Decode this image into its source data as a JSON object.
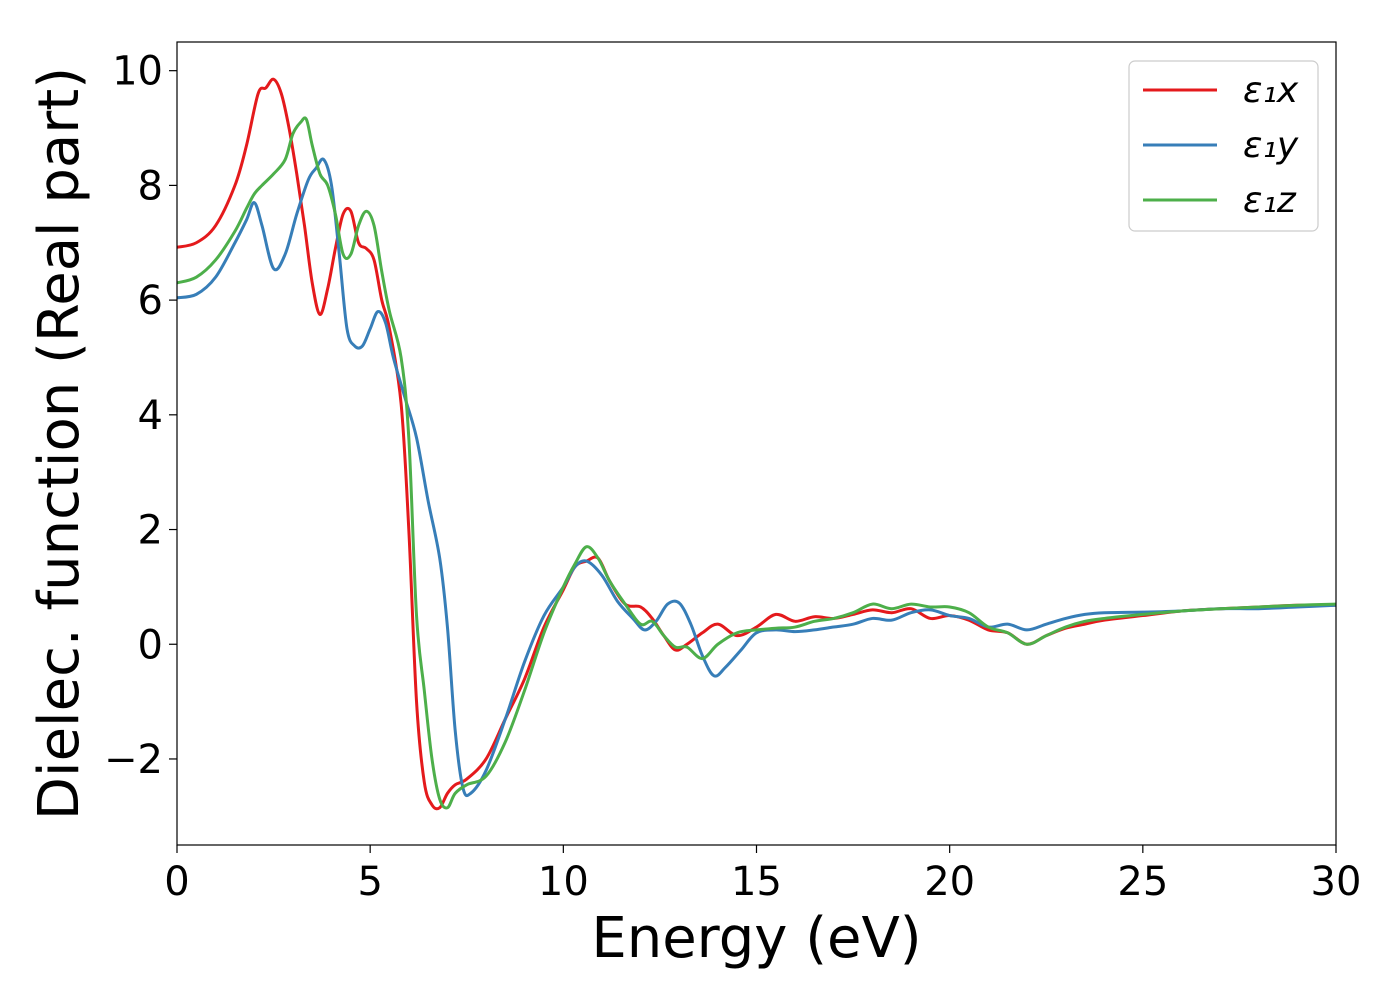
{
  "chart_data": {
    "type": "line",
    "title": "",
    "xlabel": "Energy (eV)",
    "ylabel": "Dielec. function (Real part)",
    "xlim": [
      0,
      30
    ],
    "ylim": [
      -3.5,
      10.5
    ],
    "xticks": [
      0,
      5,
      10,
      15,
      20,
      25,
      30
    ],
    "xtick_labels": [
      "0",
      "5",
      "10",
      "15",
      "20",
      "25",
      "30"
    ],
    "yticks": [
      -2,
      0,
      2,
      4,
      6,
      8,
      10
    ],
    "ytick_labels": [
      "−2",
      "0",
      "2",
      "4",
      "6",
      "8",
      "10"
    ],
    "grid": false,
    "legend_position": "top-right",
    "series": [
      {
        "name": "ε₁x",
        "color": "#e41a1c",
        "x": [
          0,
          0.5,
          1,
          1.5,
          1.8,
          2.1,
          2.3,
          2.5,
          2.7,
          2.9,
          3.1,
          3.3,
          3.5,
          3.7,
          3.9,
          4.1,
          4.3,
          4.5,
          4.7,
          4.9,
          5.1,
          5.3,
          5.5,
          5.8,
          6.0,
          6.2,
          6.4,
          6.6,
          6.8,
          7.0,
          7.2,
          7.5,
          8.0,
          8.5,
          9.0,
          9.5,
          10.0,
          10.3,
          10.6,
          10.9,
          11.2,
          11.6,
          12.0,
          12.3,
          12.6,
          12.9,
          13.2,
          13.6,
          14.0,
          14.5,
          15.0,
          15.5,
          16.0,
          16.5,
          17.0,
          17.5,
          18.0,
          18.5,
          19.0,
          19.5,
          20.0,
          20.5,
          21.0,
          21.5,
          22.0,
          22.5,
          23.0,
          23.5,
          24.0,
          25.0,
          26.0,
          27.0,
          28.0,
          29.0,
          30.0
        ],
        "y": [
          6.92,
          7.0,
          7.3,
          8.0,
          8.7,
          9.6,
          9.7,
          9.85,
          9.6,
          9.0,
          8.2,
          7.3,
          6.3,
          5.75,
          6.2,
          6.9,
          7.5,
          7.55,
          7.0,
          6.9,
          6.7,
          6.0,
          5.5,
          4.2,
          2.0,
          -1.0,
          -2.4,
          -2.8,
          -2.85,
          -2.6,
          -2.45,
          -2.35,
          -2.0,
          -1.3,
          -0.6,
          0.3,
          0.95,
          1.35,
          1.45,
          1.5,
          1.1,
          0.7,
          0.65,
          0.45,
          0.15,
          -0.1,
          0.0,
          0.2,
          0.35,
          0.15,
          0.3,
          0.52,
          0.4,
          0.48,
          0.45,
          0.52,
          0.6,
          0.55,
          0.62,
          0.45,
          0.5,
          0.42,
          0.25,
          0.2,
          0.0,
          0.15,
          0.28,
          0.35,
          0.42,
          0.5,
          0.58,
          0.62,
          0.65,
          0.68,
          0.68
        ]
      },
      {
        "name": "ε₁y",
        "color": "#377eb8",
        "x": [
          0,
          0.5,
          1,
          1.5,
          1.8,
          2.0,
          2.2,
          2.5,
          2.8,
          3.1,
          3.4,
          3.6,
          3.8,
          4.0,
          4.2,
          4.4,
          4.6,
          4.8,
          5.0,
          5.2,
          5.4,
          5.6,
          5.9,
          6.2,
          6.5,
          6.8,
          7.0,
          7.2,
          7.4,
          7.6,
          8.0,
          8.5,
          9.0,
          9.5,
          10.0,
          10.3,
          10.6,
          11.0,
          11.4,
          11.8,
          12.1,
          12.4,
          12.7,
          13.0,
          13.3,
          13.6,
          13.9,
          14.2,
          14.6,
          15.0,
          15.5,
          16.0,
          16.5,
          17.0,
          17.5,
          18.0,
          18.5,
          19.0,
          19.5,
          20.0,
          20.5,
          21.0,
          21.5,
          22.0,
          22.5,
          23.0,
          23.5,
          24.0,
          25.0,
          26.0,
          27.0,
          28.0,
          29.0,
          30.0
        ],
        "y": [
          6.04,
          6.1,
          6.4,
          7.0,
          7.4,
          7.7,
          7.3,
          6.55,
          6.8,
          7.5,
          8.1,
          8.3,
          8.45,
          8.0,
          6.8,
          5.5,
          5.2,
          5.2,
          5.5,
          5.8,
          5.6,
          5.0,
          4.3,
          3.6,
          2.5,
          1.5,
          0.3,
          -1.5,
          -2.5,
          -2.6,
          -2.2,
          -1.3,
          -0.3,
          0.5,
          1.0,
          1.35,
          1.45,
          1.2,
          0.75,
          0.45,
          0.25,
          0.4,
          0.7,
          0.72,
          0.35,
          -0.2,
          -0.55,
          -0.4,
          -0.1,
          0.2,
          0.25,
          0.22,
          0.25,
          0.3,
          0.35,
          0.45,
          0.42,
          0.55,
          0.6,
          0.5,
          0.45,
          0.3,
          0.35,
          0.25,
          0.35,
          0.45,
          0.52,
          0.55,
          0.56,
          0.58,
          0.62,
          0.62,
          0.65,
          0.68
        ]
      },
      {
        "name": "ε₁z",
        "color": "#4daf4a",
        "x": [
          0,
          0.5,
          1,
          1.5,
          1.8,
          2.0,
          2.2,
          2.5,
          2.8,
          3.0,
          3.2,
          3.35,
          3.5,
          3.7,
          3.9,
          4.1,
          4.3,
          4.5,
          4.7,
          4.9,
          5.1,
          5.3,
          5.5,
          5.8,
          6.0,
          6.2,
          6.4,
          6.6,
          6.8,
          7.0,
          7.2,
          7.5,
          8.0,
          8.5,
          9.0,
          9.5,
          10.0,
          10.3,
          10.6,
          10.9,
          11.2,
          11.6,
          12.0,
          12.3,
          12.6,
          12.9,
          13.2,
          13.6,
          14.0,
          14.5,
          15.0,
          15.5,
          16.0,
          16.5,
          17.0,
          17.5,
          18.0,
          18.5,
          19.0,
          19.5,
          20.0,
          20.5,
          21.0,
          21.5,
          22.0,
          22.5,
          23.0,
          23.5,
          24.0,
          25.0,
          26.0,
          27.0,
          28.0,
          29.0,
          30.0
        ],
        "y": [
          6.3,
          6.4,
          6.7,
          7.2,
          7.6,
          7.85,
          8.0,
          8.2,
          8.45,
          8.9,
          9.1,
          9.15,
          8.7,
          8.2,
          8.0,
          7.5,
          6.8,
          6.8,
          7.3,
          7.55,
          7.3,
          6.5,
          5.8,
          5.0,
          3.6,
          0.5,
          -0.8,
          -2.0,
          -2.7,
          -2.85,
          -2.6,
          -2.45,
          -2.3,
          -1.7,
          -0.8,
          0.2,
          1.0,
          1.4,
          1.7,
          1.5,
          1.1,
          0.7,
          0.35,
          0.4,
          0.15,
          -0.05,
          -0.05,
          -0.25,
          0.0,
          0.2,
          0.25,
          0.28,
          0.3,
          0.4,
          0.45,
          0.55,
          0.7,
          0.62,
          0.7,
          0.65,
          0.65,
          0.55,
          0.3,
          0.2,
          0.0,
          0.15,
          0.3,
          0.4,
          0.45,
          0.52,
          0.58,
          0.62,
          0.65,
          0.68,
          0.7
        ]
      }
    ]
  }
}
